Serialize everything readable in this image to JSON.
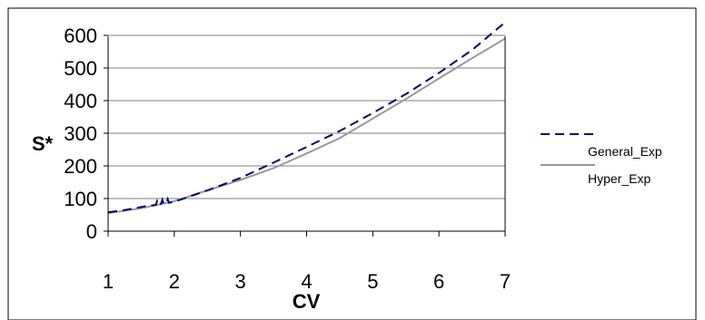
{
  "chart_data": {
    "type": "line",
    "title": "",
    "xlabel": "CV",
    "ylabel": "S*",
    "xlim": [
      1,
      7
    ],
    "ylim": [
      0,
      600
    ],
    "grid": true,
    "legend_position": "right",
    "x_ticks": [
      "1",
      "2",
      "3",
      "4",
      "5",
      "6",
      "7"
    ],
    "y_ticks": [
      "0",
      "100",
      "200",
      "300",
      "400",
      "500",
      "600"
    ],
    "series": [
      {
        "name": "General_Exp",
        "color": "#00007f",
        "line_style": "dashed",
        "x": [
          1,
          1.2,
          1.4,
          1.6,
          1.72,
          1.74,
          1.76,
          1.8,
          1.82,
          1.84,
          1.88,
          1.9,
          1.92,
          2,
          2.5,
          3,
          3.5,
          4,
          4.5,
          5,
          5.5,
          6,
          6.5,
          7
        ],
        "values": [
          58,
          63,
          70,
          78,
          80,
          92,
          80,
          84,
          96,
          84,
          86,
          98,
          87,
          90,
          125,
          163,
          210,
          258,
          307,
          362,
          420,
          485,
          555,
          640
        ]
      },
      {
        "name": "Hyper_Exp",
        "color": "#999999",
        "line_style": "solid",
        "x": [
          1,
          1.5,
          2,
          2.5,
          3,
          3.5,
          4,
          4.5,
          5,
          5.5,
          6,
          6.5,
          7
        ],
        "values": [
          55,
          70,
          92,
          125,
          157,
          193,
          238,
          285,
          345,
          405,
          468,
          530,
          590
        ]
      }
    ]
  }
}
